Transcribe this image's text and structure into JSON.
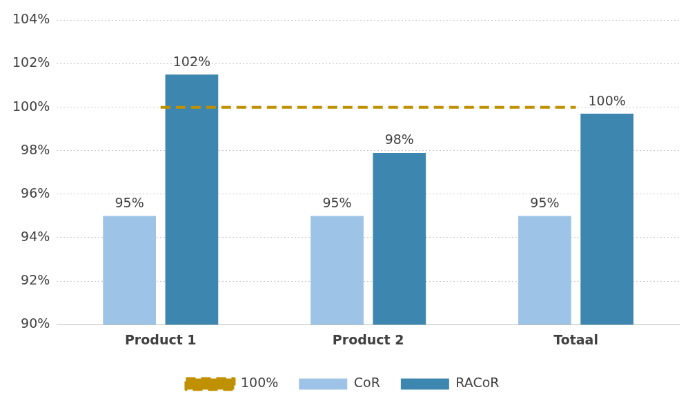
{
  "chart_data": {
    "type": "bar",
    "categories": [
      "Product 1",
      "Product 2",
      "Totaal"
    ],
    "series": [
      {
        "name": "CoR",
        "color": "#9dc3e6",
        "values": [
          95,
          95,
          95
        ],
        "value_labels": [
          "95%",
          "95%",
          "95%"
        ]
      },
      {
        "name": "RACoR",
        "color": "#3c86b0",
        "values": [
          101.5,
          97.9,
          99.7
        ],
        "value_labels": [
          "102%",
          "98%",
          "100%"
        ]
      },
      {
        "name": "100%",
        "type": "line",
        "color": "#bf9000",
        "values": [
          100,
          100,
          100
        ],
        "line_style": "dashed",
        "marker": "none"
      }
    ],
    "ylim": [
      90,
      104
    ],
    "yticks": [
      {
        "value": 90,
        "label": "90%"
      },
      {
        "value": 92,
        "label": "92%"
      },
      {
        "value": 94,
        "label": "94%"
      },
      {
        "value": 96,
        "label": "96%"
      },
      {
        "value": 98,
        "label": "98%"
      },
      {
        "value": 100,
        "label": "100%"
      },
      {
        "value": 102,
        "label": "102%"
      },
      {
        "value": 104,
        "label": "104%"
      }
    ],
    "grid": "y",
    "legend": "bottom"
  }
}
